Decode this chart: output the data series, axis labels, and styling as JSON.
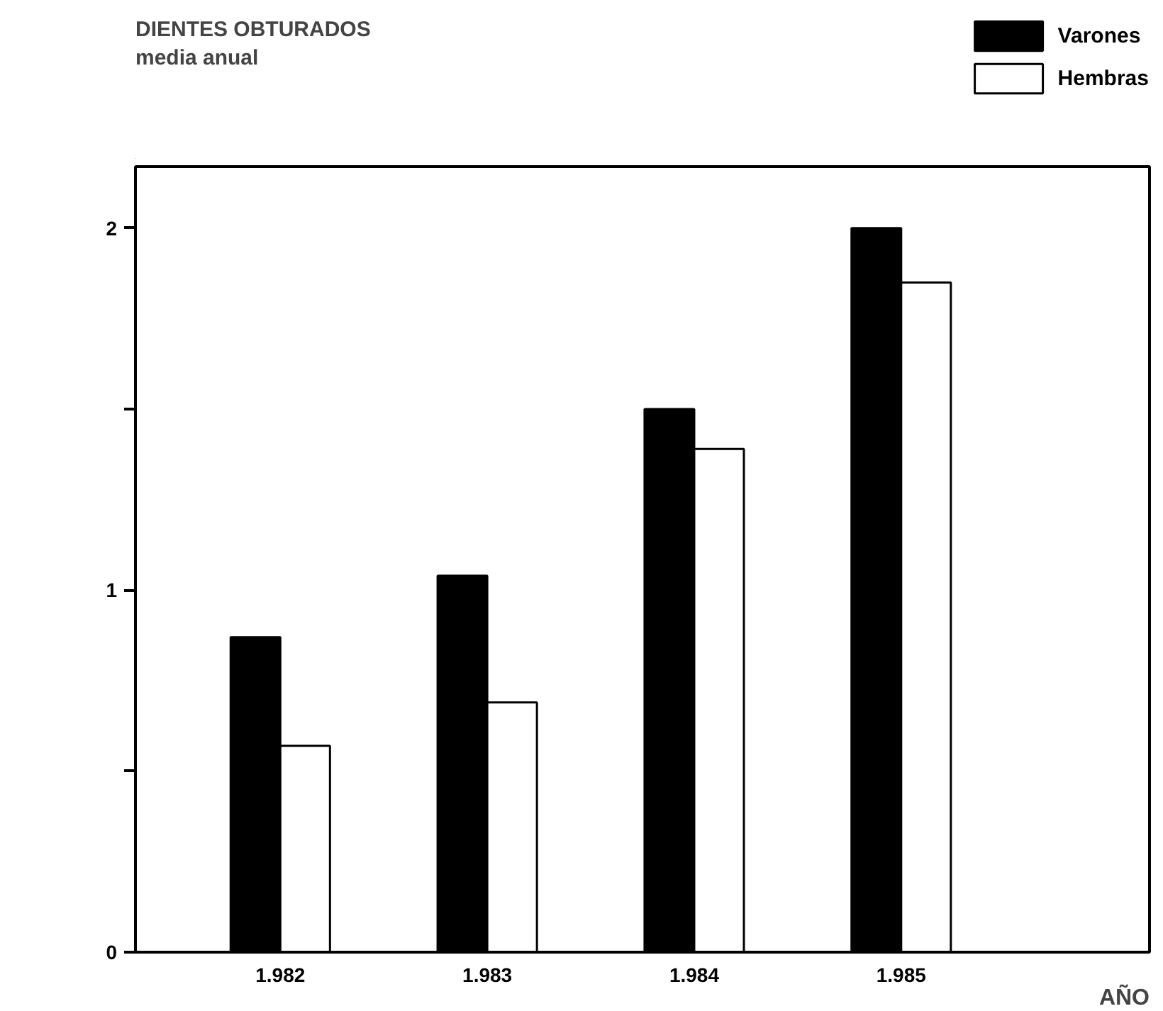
{
  "chart_data": {
    "type": "bar",
    "title": "DIENTES OBTURADOS",
    "subtitle": "media anual",
    "xlabel": "AÑO",
    "categories": [
      "1.982",
      "1.983",
      "1.984",
      "1.985"
    ],
    "series": [
      {
        "name": "Varones",
        "color": "#000000",
        "values": [
          0.87,
          1.04,
          1.5,
          2.0
        ]
      },
      {
        "name": "Hembras",
        "color": "#ffffff",
        "values": [
          0.57,
          0.69,
          1.39,
          1.85
        ]
      }
    ],
    "ylim": [
      0,
      2.17
    ],
    "yticks": [
      0,
      {
        "value": 0.5,
        "label": null
      },
      1,
      {
        "value": 1.5,
        "label": null
      },
      2
    ],
    "grid": false,
    "legend": "top right"
  }
}
